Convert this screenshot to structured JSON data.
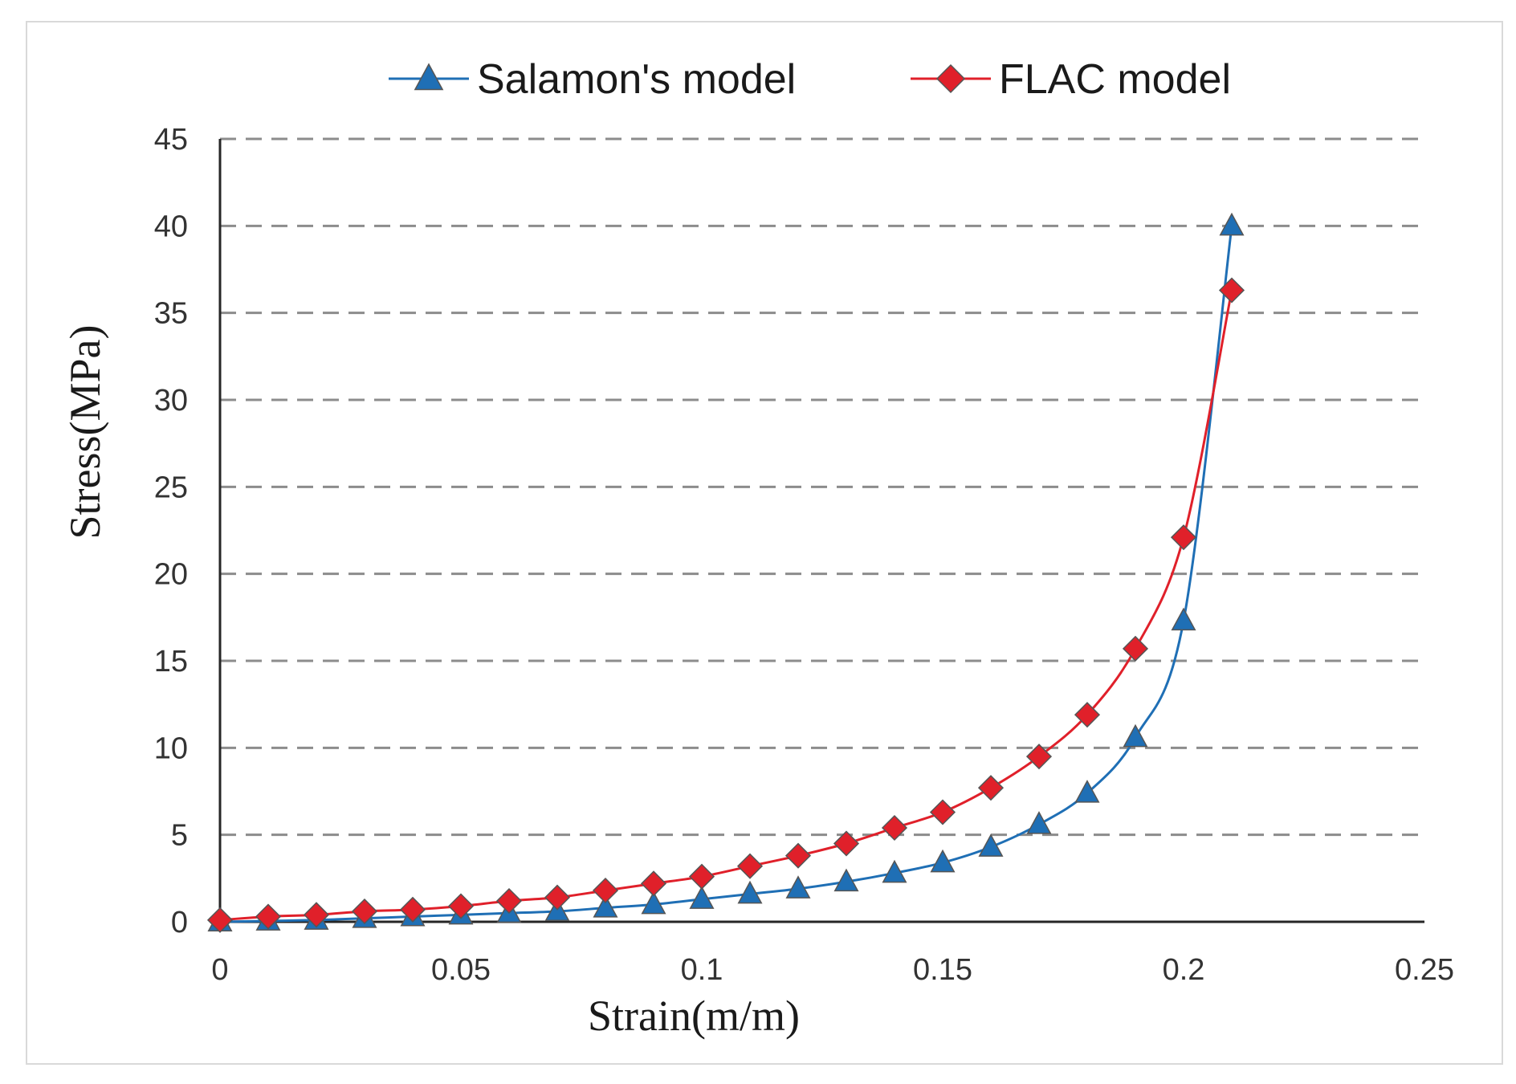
{
  "chart_data": {
    "type": "line",
    "title": "",
    "xlabel": "Strain(m/m)",
    "ylabel": "Stress(MPa)",
    "xlim": [
      0,
      0.25
    ],
    "ylim": [
      0,
      45
    ],
    "x_ticks": [
      "0",
      "0.05",
      "0.1",
      "0.15",
      "0.2",
      "0.25"
    ],
    "y_ticks": [
      "0",
      "5",
      "10",
      "15",
      "20",
      "25",
      "30",
      "35",
      "40",
      "45"
    ],
    "grid": "horizontal dashed",
    "legend_position": "top",
    "x": [
      0,
      0.01,
      0.02,
      0.03,
      0.04,
      0.05,
      0.06,
      0.07,
      0.08,
      0.09,
      0.1,
      0.11,
      0.12,
      0.13,
      0.14,
      0.15,
      0.16,
      0.17,
      0.18,
      0.19,
      0.2,
      0.21
    ],
    "series": [
      {
        "name": "Salamon's model",
        "marker": "triangle",
        "color": "#1f6fb5",
        "values": [
          0,
          0.05,
          0.1,
          0.2,
          0.3,
          0.4,
          0.5,
          0.6,
          0.8,
          1.0,
          1.3,
          1.6,
          1.9,
          2.3,
          2.8,
          3.4,
          4.3,
          5.6,
          7.4,
          10.6,
          17.3,
          40.0
        ]
      },
      {
        "name": "FLAC model",
        "marker": "diamond",
        "color": "#e0202a",
        "values": [
          0.1,
          0.3,
          0.4,
          0.6,
          0.7,
          0.9,
          1.2,
          1.4,
          1.8,
          2.2,
          2.6,
          3.2,
          3.8,
          4.5,
          5.4,
          6.3,
          7.7,
          9.5,
          11.9,
          15.7,
          22.1,
          36.3
        ]
      }
    ]
  }
}
